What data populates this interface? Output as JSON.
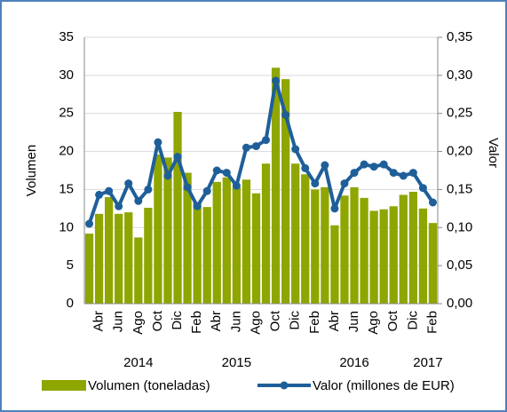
{
  "chart_data": {
    "type": "bar_line",
    "categories": [
      null,
      "Abr",
      null,
      "Jun",
      null,
      "Ago",
      null,
      "Oct",
      null,
      "Dic",
      null,
      "Feb",
      null,
      "Abr",
      null,
      "Jun",
      null,
      "Ago",
      null,
      "Oct",
      null,
      "Dic",
      null,
      "Feb",
      null,
      "Abr",
      null,
      "Jun",
      null,
      "Ago",
      null,
      "Oct",
      null,
      "Dic",
      null,
      "Feb"
    ],
    "year_labels": [
      "2014",
      "2015",
      "2016",
      "2017"
    ],
    "y_label": "Volumen",
    "y2_label": "Valor",
    "ylim": [
      0,
      35
    ],
    "yticks": [
      0,
      5,
      10,
      15,
      20,
      25,
      30,
      35
    ],
    "y2lim": [
      0,
      0.35
    ],
    "y2ticks": [
      {
        "value": 0,
        "label": "0,00"
      },
      {
        "value": 0.05,
        "label": "0,05"
      },
      {
        "value": 0.1,
        "label": "0,10"
      },
      {
        "value": 0.15,
        "label": "0,15"
      },
      {
        "value": 0.2,
        "label": "0,20"
      },
      {
        "value": 0.25,
        "label": "0,25"
      },
      {
        "value": 0.3,
        "label": "0,30"
      },
      {
        "value": 0.35,
        "label": "0,35"
      }
    ],
    "grid": true,
    "series": [
      {
        "name": "Volumen (toneladas)",
        "type": "bar",
        "color": "#8fa600",
        "values": [
          9.2,
          11.8,
          14.0,
          11.8,
          12.0,
          8.7,
          12.6,
          19.6,
          19.2,
          25.2,
          17.2,
          13.3,
          12.7,
          16.0,
          16.6,
          15.3,
          16.3,
          14.5,
          18.4,
          31.0,
          29.5,
          18.4,
          17.0,
          15.0,
          15.3,
          10.3,
          14.2,
          15.3,
          13.9,
          12.2,
          12.4,
          12.8,
          14.3,
          14.7,
          12.5,
          10.6
        ]
      },
      {
        "name": "Valor (millones de EUR)",
        "type": "line",
        "axis": "y2",
        "color": "#1f5f99",
        "values": [
          0.105,
          0.143,
          0.148,
          0.128,
          0.158,
          0.135,
          0.15,
          0.212,
          0.168,
          0.193,
          0.153,
          0.128,
          0.148,
          0.175,
          0.172,
          0.155,
          0.205,
          0.207,
          0.215,
          0.293,
          0.248,
          0.203,
          0.178,
          0.158,
          0.182,
          0.125,
          0.158,
          0.172,
          0.183,
          0.18,
          0.183,
          0.172,
          0.168,
          0.172,
          0.152,
          0.133
        ]
      }
    ]
  }
}
